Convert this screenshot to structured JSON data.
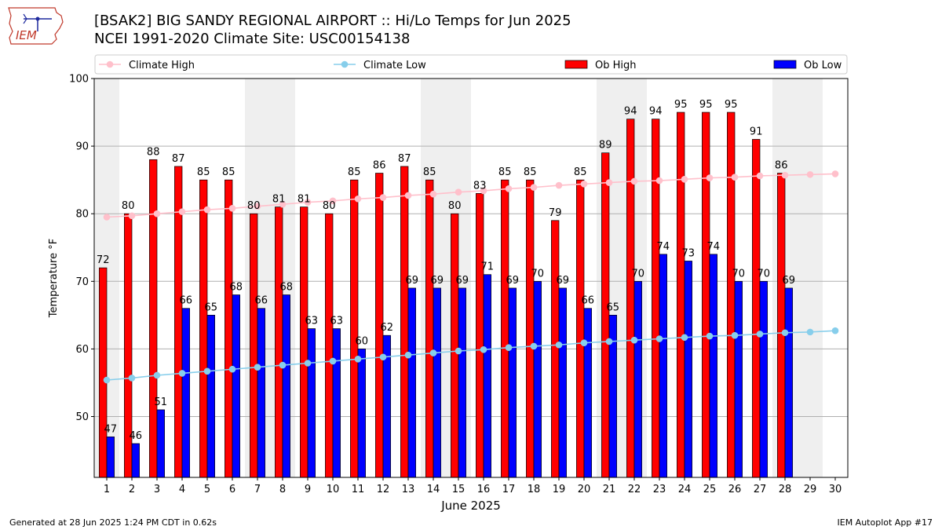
{
  "header": {
    "title_line1": "[BSAK2] BIG SANDY REGIONAL AIRPORT :: Hi/Lo Temps for Jun 2025",
    "title_line2": "NCEI 1991-2020 Climate Site: USC00154138",
    "logo_text": "IEM"
  },
  "footer": {
    "generated": "Generated at 28 Jun 2025 1:24 PM CDT in 0.62s",
    "app": "IEM Autoplot App #17"
  },
  "colors": {
    "ob_high": "#ff0000",
    "ob_low": "#0000ff",
    "climate_high": "#ffc0cb",
    "climate_low": "#87ceeb",
    "weekend_band": "#efefef",
    "grid": "#b0b0b0"
  },
  "chart_data": {
    "type": "bar",
    "title": "[BSAK2] BIG SANDY REGIONAL AIRPORT :: Hi/Lo Temps for Jun 2025",
    "subtitle": "NCEI 1991-2020 Climate Site: USC00154138",
    "xlabel": "June 2025",
    "ylabel": "Temperature °F",
    "ylim": [
      41,
      100
    ],
    "yticks": [
      50,
      60,
      70,
      80,
      90,
      100
    ],
    "grid": true,
    "legend_placement": "top",
    "weekend_days": [
      [
        1,
        1
      ],
      [
        7,
        8
      ],
      [
        14,
        15
      ],
      [
        21,
        22
      ],
      [
        28,
        29
      ]
    ],
    "days": [
      1,
      2,
      3,
      4,
      5,
      6,
      7,
      8,
      9,
      10,
      11,
      12,
      13,
      14,
      15,
      16,
      17,
      18,
      19,
      20,
      21,
      22,
      23,
      24,
      25,
      26,
      27,
      28,
      29,
      30
    ],
    "series": [
      {
        "name": "Climate High",
        "kind": "line",
        "values": [
          79.5,
          79.7,
          80.0,
          80.3,
          80.6,
          80.8,
          81.1,
          81.4,
          81.7,
          81.9,
          82.2,
          82.4,
          82.7,
          82.9,
          83.2,
          83.4,
          83.7,
          83.9,
          84.2,
          84.4,
          84.6,
          84.8,
          84.9,
          85.1,
          85.3,
          85.4,
          85.6,
          85.7,
          85.8,
          85.9
        ]
      },
      {
        "name": "Climate Low",
        "kind": "line",
        "values": [
          55.4,
          55.7,
          56.1,
          56.4,
          56.7,
          57.0,
          57.3,
          57.6,
          57.9,
          58.2,
          58.5,
          58.8,
          59.1,
          59.4,
          59.7,
          59.9,
          60.2,
          60.4,
          60.6,
          60.9,
          61.1,
          61.3,
          61.5,
          61.7,
          61.9,
          62.0,
          62.2,
          62.4,
          62.5,
          62.7
        ]
      },
      {
        "name": "Ob High",
        "kind": "bar",
        "values": [
          72,
          80,
          88,
          87,
          85,
          85,
          80,
          81,
          81,
          80,
          85,
          86,
          87,
          85,
          80,
          83,
          85,
          85,
          79,
          85,
          89,
          94,
          94,
          95,
          95,
          95,
          91,
          86,
          null,
          null
        ]
      },
      {
        "name": "Ob Low",
        "kind": "bar",
        "values": [
          47,
          46,
          51,
          66,
          65,
          68,
          66,
          68,
          63,
          63,
          60,
          62,
          69,
          69,
          69,
          71,
          69,
          70,
          69,
          66,
          65,
          70,
          74,
          73,
          74,
          70,
          70,
          69,
          null,
          null
        ]
      }
    ]
  }
}
